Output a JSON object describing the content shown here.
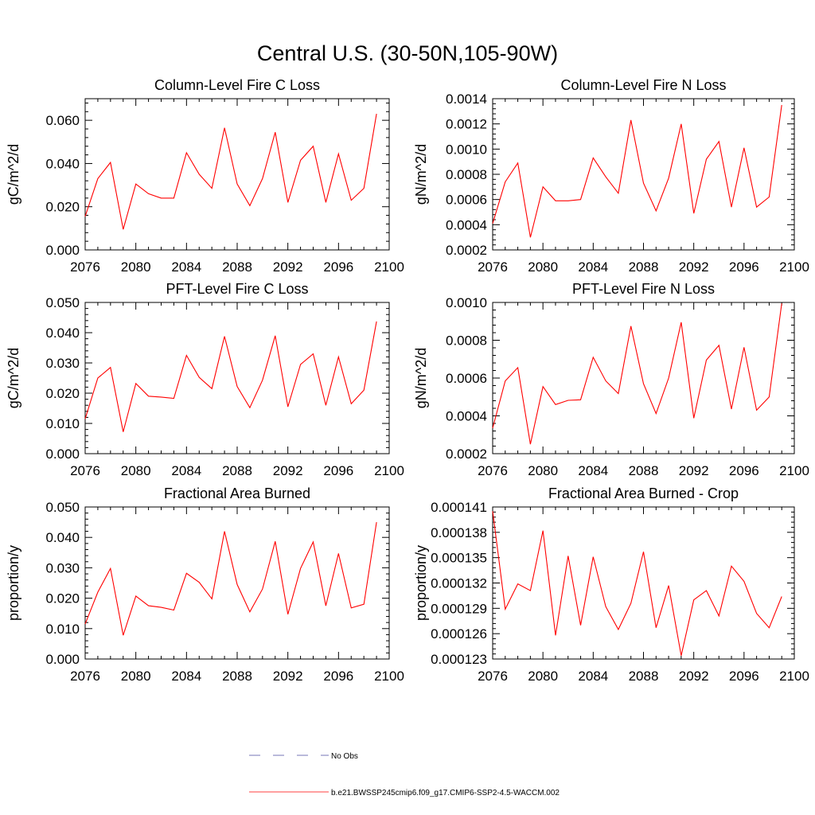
{
  "page_title": "Central U.S. (30-50N,105-90W)",
  "colors": {
    "model_line": "#ff0000",
    "obs_line": "#4a4aa0",
    "axis": "#000000"
  },
  "legend": {
    "obs_label": "No Obs",
    "model_label": "b.e21.BWSSP245cmip6.f09_g17.CMIP6-SSP2-4.5-WACCM.002"
  },
  "chart_data": [
    {
      "type": "line",
      "title": "Column-Level Fire C Loss",
      "ylabel": "gC/m^2/d",
      "xlim": [
        2076,
        2100
      ],
      "xticks": [
        2076,
        2080,
        2084,
        2088,
        2092,
        2096,
        2100
      ],
      "ylim": [
        0,
        0.07
      ],
      "yticks": [
        0,
        0.02,
        0.04,
        0.06
      ],
      "ytick_labels": [
        "0.000",
        "0.020",
        "0.040",
        "0.060"
      ],
      "grid": false,
      "series": [
        {
          "x": [
            2076,
            2077,
            2078,
            2079,
            2080,
            2081,
            2082,
            2083,
            2084,
            2085,
            2086,
            2087,
            2088,
            2089,
            2090,
            2091,
            2092,
            2093,
            2094,
            2095,
            2096,
            2097,
            2098,
            2099
          ],
          "values": [
            0.0155,
            0.033,
            0.0405,
            0.0095,
            0.0305,
            0.026,
            0.024,
            0.024,
            0.045,
            0.035,
            0.0285,
            0.0565,
            0.0305,
            0.0205,
            0.033,
            0.0545,
            0.022,
            0.0415,
            0.048,
            0.022,
            0.0445,
            0.023,
            0.0285,
            0.063
          ]
        }
      ]
    },
    {
      "type": "line",
      "title": "Column-Level Fire N Loss",
      "ylabel": "gN/m^2/d",
      "xlim": [
        2076,
        2100
      ],
      "xticks": [
        2076,
        2080,
        2084,
        2088,
        2092,
        2096,
        2100
      ],
      "ylim": [
        0.0002,
        0.0014
      ],
      "yticks": [
        0.0002,
        0.0004,
        0.0006,
        0.0008,
        0.001,
        0.0012,
        0.0014
      ],
      "ytick_labels": [
        "0.0002",
        "0.0004",
        "0.0006",
        "0.0008",
        "0.0010",
        "0.0012",
        "0.0014"
      ],
      "grid": false,
      "series": [
        {
          "x": [
            2076,
            2077,
            2078,
            2079,
            2080,
            2081,
            2082,
            2083,
            2084,
            2085,
            2086,
            2087,
            2088,
            2089,
            2090,
            2091,
            2092,
            2093,
            2094,
            2095,
            2096,
            2097,
            2098,
            2099
          ],
          "values": [
            0.00041,
            0.00074,
            0.00089,
            0.0003,
            0.0007,
            0.00059,
            0.00059,
            0.0006,
            0.00093,
            0.00078,
            0.00065,
            0.00123,
            0.00073,
            0.00051,
            0.00077,
            0.0012,
            0.00049,
            0.00092,
            0.00106,
            0.00054,
            0.00101,
            0.00054,
            0.00062,
            0.00135
          ]
        }
      ]
    },
    {
      "type": "line",
      "title": "PFT-Level Fire C Loss",
      "ylabel": "gC/m^2/d",
      "xlim": [
        2076,
        2100
      ],
      "xticks": [
        2076,
        2080,
        2084,
        2088,
        2092,
        2096,
        2100
      ],
      "ylim": [
        0,
        0.05
      ],
      "yticks": [
        0,
        0.01,
        0.02,
        0.03,
        0.04,
        0.05
      ],
      "ytick_labels": [
        "0.000",
        "0.010",
        "0.020",
        "0.030",
        "0.040",
        "0.050"
      ],
      "grid": false,
      "series": [
        {
          "x": [
            2076,
            2077,
            2078,
            2079,
            2080,
            2081,
            2082,
            2083,
            2084,
            2085,
            2086,
            2087,
            2088,
            2089,
            2090,
            2091,
            2092,
            2093,
            2094,
            2095,
            2096,
            2097,
            2098,
            2099
          ],
          "values": [
            0.0115,
            0.025,
            0.0285,
            0.0072,
            0.0232,
            0.019,
            0.0187,
            0.0183,
            0.0325,
            0.0252,
            0.0215,
            0.0388,
            0.0222,
            0.0152,
            0.0243,
            0.039,
            0.0155,
            0.0295,
            0.033,
            0.016,
            0.032,
            0.0165,
            0.021,
            0.0437
          ]
        }
      ]
    },
    {
      "type": "line",
      "title": "PFT-Level Fire N Loss",
      "ylabel": "gN/m^2/d",
      "xlim": [
        2076,
        2100
      ],
      "xticks": [
        2076,
        2080,
        2084,
        2088,
        2092,
        2096,
        2100
      ],
      "ylim": [
        0.0002,
        0.001
      ],
      "yticks": [
        0.0002,
        0.0004,
        0.0006,
        0.0008,
        0.001
      ],
      "ytick_labels": [
        "0.0002",
        "0.0004",
        "0.0006",
        "0.0008",
        "0.0010"
      ],
      "grid": false,
      "series": [
        {
          "x": [
            2076,
            2077,
            2078,
            2079,
            2080,
            2081,
            2082,
            2083,
            2084,
            2085,
            2086,
            2087,
            2088,
            2089,
            2090,
            2091,
            2092,
            2093,
            2094,
            2095,
            2096,
            2097,
            2098,
            2099
          ],
          "values": [
            0.000335,
            0.000585,
            0.000655,
            0.00025,
            0.000555,
            0.00046,
            0.000482,
            0.000485,
            0.00071,
            0.000585,
            0.000518,
            0.000875,
            0.00057,
            0.000412,
            0.0006,
            0.000895,
            0.000388,
            0.000695,
            0.000773,
            0.000436,
            0.000763,
            0.00043,
            0.0005,
            0.000995
          ]
        }
      ]
    },
    {
      "type": "line",
      "title": "Fractional Area Burned",
      "ylabel": "proportion/y",
      "xlim": [
        2076,
        2100
      ],
      "xticks": [
        2076,
        2080,
        2084,
        2088,
        2092,
        2096,
        2100
      ],
      "ylim": [
        0,
        0.05
      ],
      "yticks": [
        0,
        0.01,
        0.02,
        0.03,
        0.04,
        0.05
      ],
      "ytick_labels": [
        "0.000",
        "0.010",
        "0.020",
        "0.030",
        "0.040",
        "0.050"
      ],
      "grid": false,
      "series": [
        {
          "x": [
            2076,
            2077,
            2078,
            2079,
            2080,
            2081,
            2082,
            2083,
            2084,
            2085,
            2086,
            2087,
            2088,
            2089,
            2090,
            2091,
            2092,
            2093,
            2094,
            2095,
            2096,
            2097,
            2098,
            2099
          ],
          "values": [
            0.0115,
            0.022,
            0.0298,
            0.0078,
            0.0207,
            0.0175,
            0.017,
            0.0161,
            0.0282,
            0.0252,
            0.0198,
            0.042,
            0.0245,
            0.0155,
            0.023,
            0.0387,
            0.0147,
            0.0298,
            0.0385,
            0.0175,
            0.0347,
            0.0168,
            0.018,
            0.045
          ]
        }
      ]
    },
    {
      "type": "line",
      "title": "Fractional Area Burned - Crop",
      "ylabel": "proportion/y",
      "xlim": [
        2076,
        2100
      ],
      "xticks": [
        2076,
        2080,
        2084,
        2088,
        2092,
        2096,
        2100
      ],
      "ylim": [
        0.000123,
        0.000141
      ],
      "yticks": [
        0.000123,
        0.000126,
        0.000129,
        0.000132,
        0.000135,
        0.000138,
        0.000141
      ],
      "ytick_labels": [
        "0.000123",
        "0.000126",
        "0.000129",
        "0.000132",
        "0.000135",
        "0.000138",
        "0.000141"
      ],
      "grid": false,
      "series": [
        {
          "x": [
            2076,
            2077,
            2078,
            2079,
            2080,
            2081,
            2082,
            2083,
            2084,
            2085,
            2086,
            2087,
            2088,
            2089,
            2090,
            2091,
            2092,
            2093,
            2094,
            2095,
            2096,
            2097,
            2098,
            2099
          ],
          "values": [
            0.0001405,
            0.0001289,
            0.0001319,
            0.0001311,
            0.0001382,
            0.0001258,
            0.0001352,
            0.000127,
            0.0001351,
            0.0001292,
            0.0001265,
            0.0001296,
            0.0001357,
            0.0001267,
            0.0001317,
            0.0001234,
            0.00013,
            0.0001311,
            0.0001281,
            0.000134,
            0.0001322,
            0.0001284,
            0.0001267,
            0.0001304
          ]
        }
      ]
    }
  ]
}
